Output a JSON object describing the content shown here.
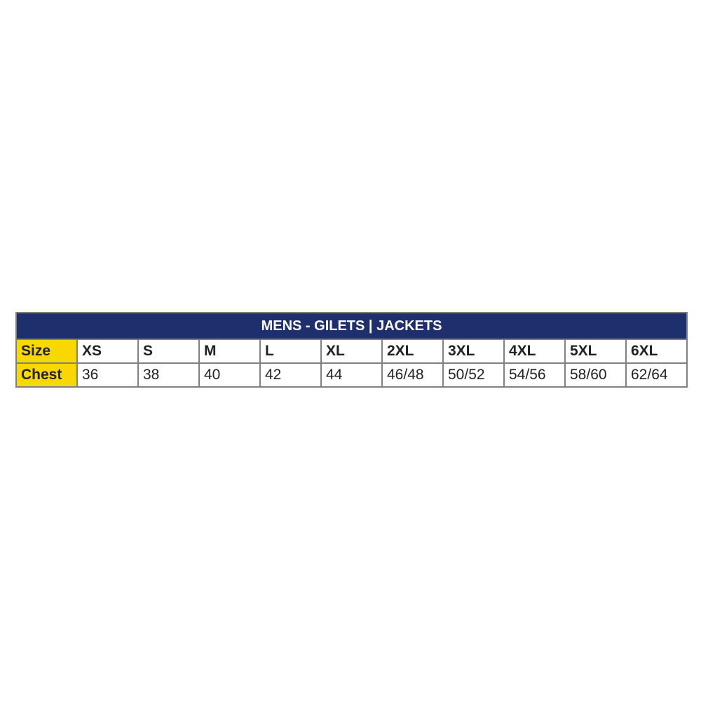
{
  "title": "MENS - GILETS | JACKETS",
  "row_labels": {
    "size": "Size",
    "chest": "Chest"
  },
  "sizes": [
    "XS",
    "S",
    "M",
    "L",
    "XL",
    "2XL",
    "3XL",
    "4XL",
    "5XL",
    "6XL"
  ],
  "chest": [
    "36",
    "38",
    "40",
    "42",
    "44",
    "46/48",
    "50/52",
    "54/56",
    "58/60",
    "62/64"
  ],
  "colors": {
    "header": "#1e2f6e",
    "row_label": "#f8d800",
    "border": "#808080"
  }
}
